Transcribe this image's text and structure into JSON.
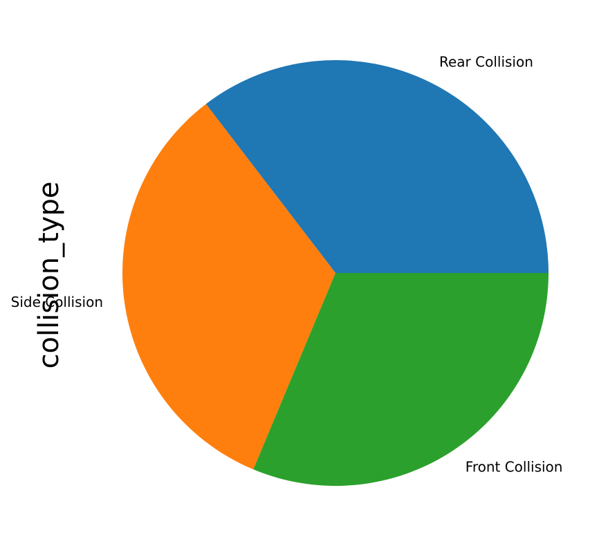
{
  "chart_data": {
    "type": "pie",
    "ylabel": "collision_type",
    "categories": [
      "Rear Collision",
      "Side Collision",
      "Front Collision"
    ],
    "values": [
      35.4,
      33.3,
      31.3
    ],
    "colors": [
      "#1f77b4",
      "#ff7f0e",
      "#2ca02c"
    ],
    "start_angle_deg": 0,
    "direction": "counterclockwise"
  }
}
